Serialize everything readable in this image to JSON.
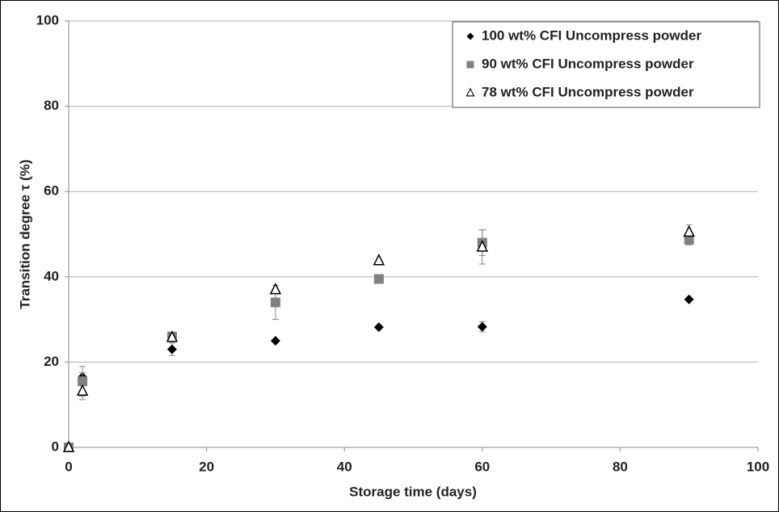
{
  "chart_data": {
    "type": "scatter",
    "x_label": "Storage time (days)",
    "y_label": "Transition degree τ (%)",
    "xlim": [
      0,
      100
    ],
    "xticks": [
      0,
      20,
      40,
      60,
      80,
      100
    ],
    "ylim": [
      0,
      100
    ],
    "yticks": [
      0,
      20,
      40,
      60,
      80,
      100
    ],
    "grid": true,
    "legend": "upper right",
    "x": [
      0,
      2,
      15,
      30,
      45,
      60,
      90
    ],
    "series": [
      {
        "name": "100 wt% CFI Uncompress powder",
        "color": "#000000",
        "marker": "diamond",
        "values": [
          0,
          16.5,
          23,
          25,
          28.2,
          28.3,
          34.7
        ],
        "errors": [
          0,
          1,
          1.5,
          0,
          0,
          1.2,
          0
        ]
      },
      {
        "name": "90 wt% CFI Uncompress powder",
        "color": "#808080",
        "marker": "square",
        "values": [
          0,
          15.5,
          26,
          34,
          39.5,
          48,
          48.7
        ],
        "errors": [
          0,
          3.5,
          0.5,
          4,
          0,
          3,
          1.2
        ]
      },
      {
        "name": "78 wt% CFI Uncompress powder",
        "color": "#000000",
        "marker": "triangle",
        "values": [
          0,
          13.2,
          25.8,
          37,
          43.8,
          47,
          50.5
        ],
        "errors": [
          0,
          2,
          0,
          0,
          0,
          4,
          1.7
        ]
      }
    ]
  }
}
